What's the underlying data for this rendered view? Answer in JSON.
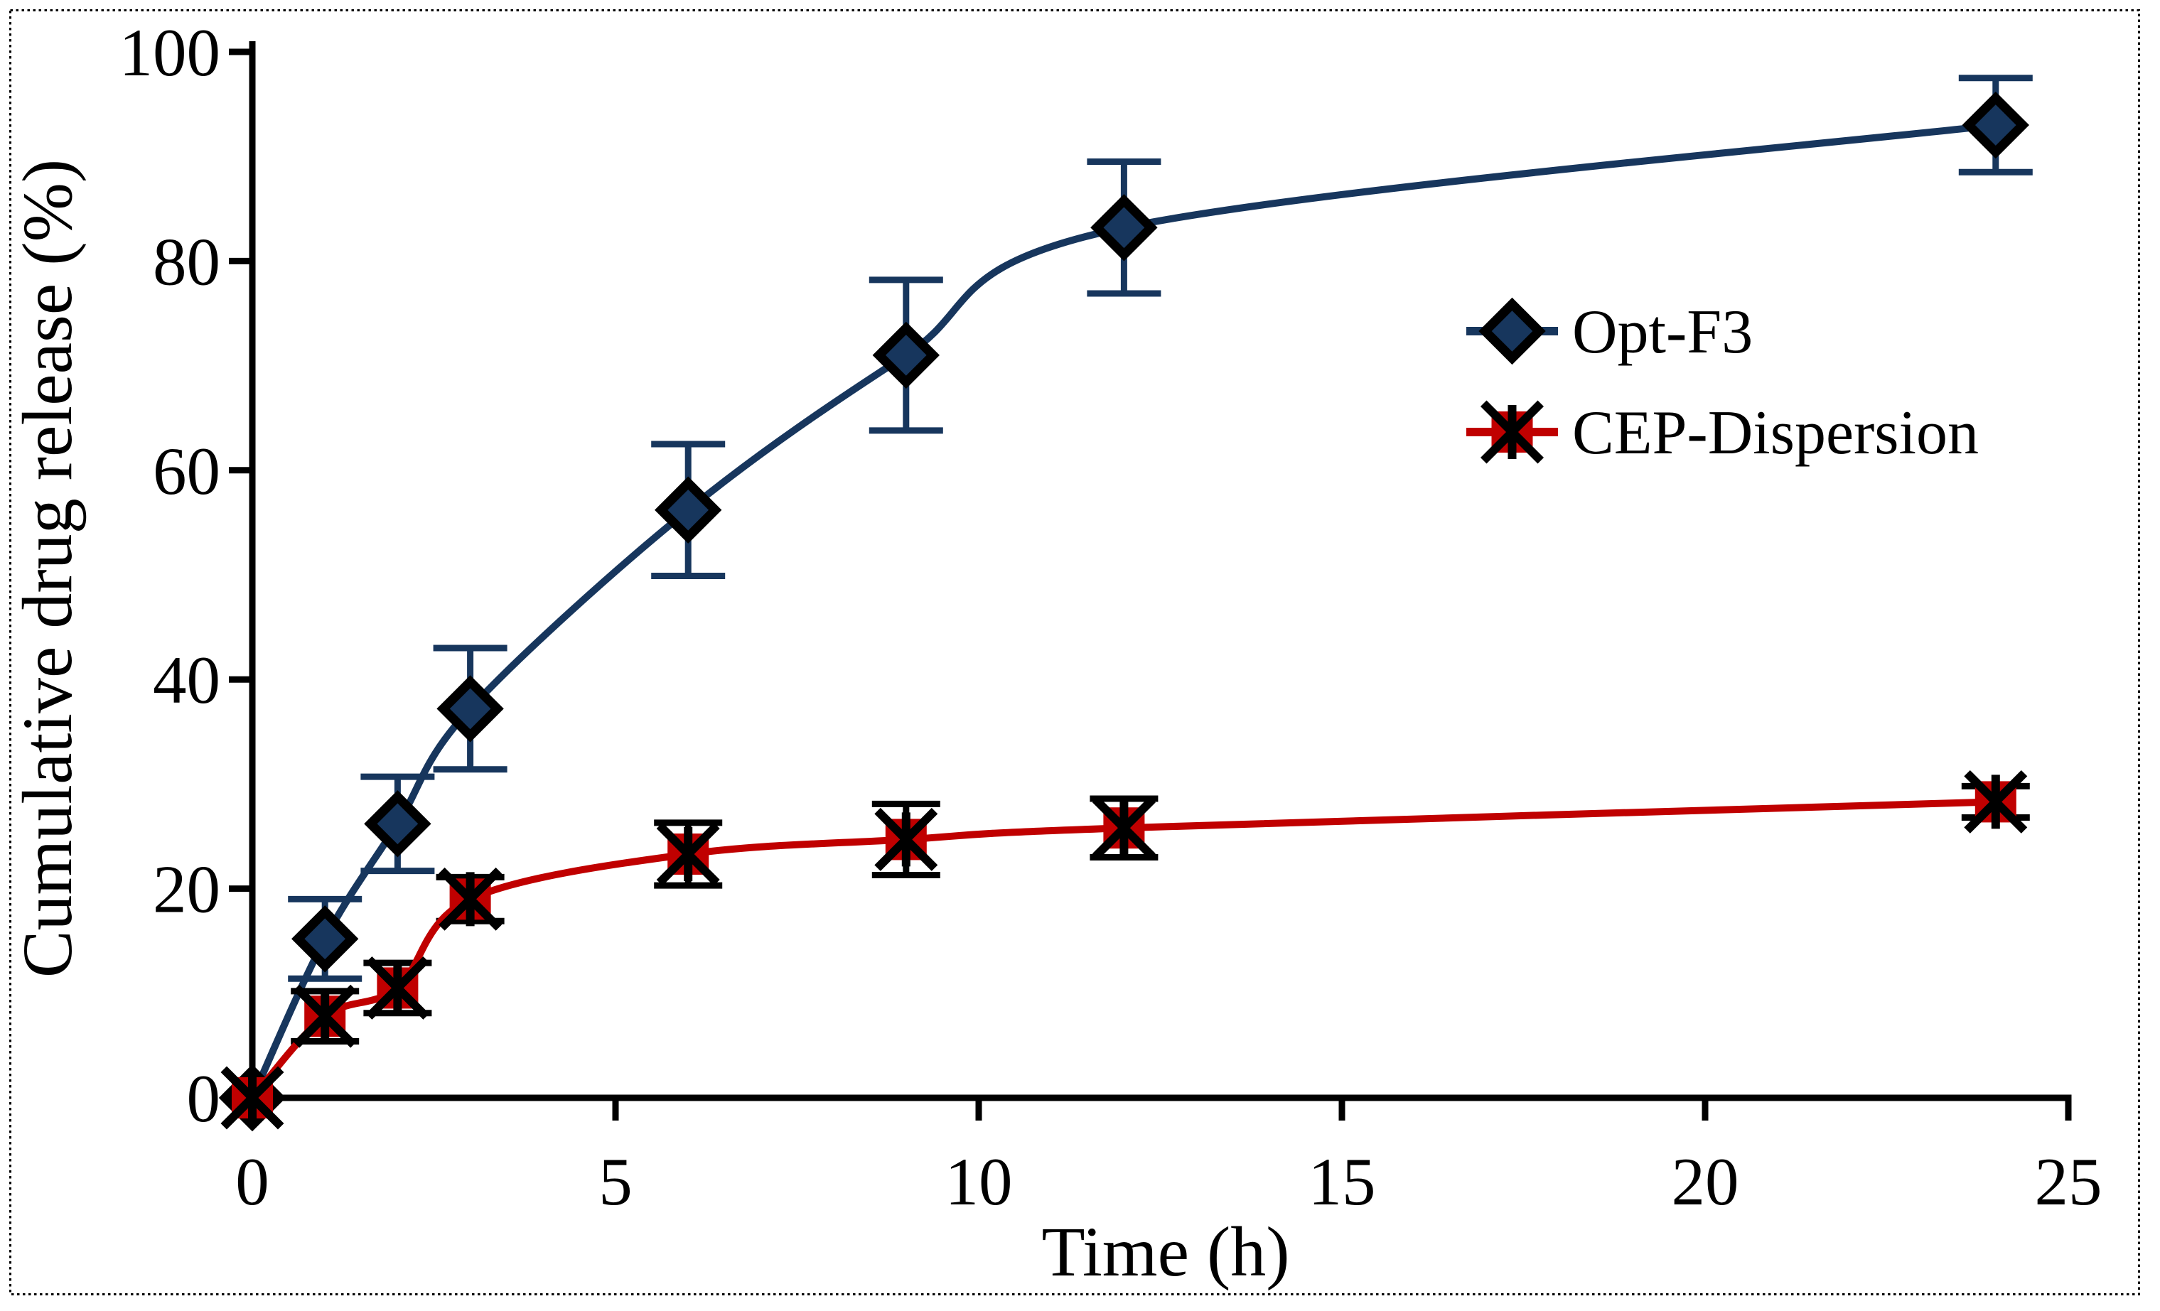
{
  "figure": {
    "background_color": "#ffffff",
    "border_color": "#000000",
    "border_style": "dotted"
  },
  "chart_data": {
    "type": "line",
    "title": "",
    "xlabel": "Time  (h)",
    "ylabel": "Cumulative drug release (%)",
    "xlim": [
      0,
      25
    ],
    "ylim": [
      0,
      100
    ],
    "x_ticks": [
      0,
      5,
      10,
      15,
      20,
      25
    ],
    "x_tick_labels": [
      "0",
      "5",
      "10",
      "15",
      "20",
      "25"
    ],
    "y_ticks": [
      0,
      20,
      40,
      60,
      80,
      100
    ],
    "y_tick_labels": [
      "0",
      "20",
      "40",
      "60",
      "80",
      "100"
    ],
    "grid": false,
    "legend_position": "center-right",
    "axis_color": "#000000",
    "x": [
      0,
      1,
      2,
      3,
      6,
      9,
      12,
      24
    ],
    "series": [
      {
        "name": "Opt-F3",
        "color": "#17365D",
        "line_smooth": true,
        "marker": "diamond",
        "marker_fill": "#17365D",
        "marker_outline": "#000000",
        "error_bar_color": "#17365D",
        "values": [
          0,
          15.2,
          26.2,
          37.2,
          56.2,
          71.0,
          83.2,
          93.0
        ],
        "errors": [
          0,
          3.8,
          4.5,
          5.8,
          6.3,
          7.2,
          6.3,
          4.5
        ]
      },
      {
        "name": "CEP-Dispersion",
        "color": "#C00000",
        "line_smooth": true,
        "marker": "square-asterisk",
        "marker_fill": "#C00000",
        "marker_outline": "#000000",
        "error_bar_color": "#000000",
        "values": [
          0,
          7.8,
          10.5,
          19.0,
          23.3,
          24.7,
          25.8,
          28.3
        ],
        "errors": [
          0,
          2.4,
          2.4,
          2.1,
          3.0,
          3.4,
          2.8,
          1.5
        ]
      }
    ]
  }
}
